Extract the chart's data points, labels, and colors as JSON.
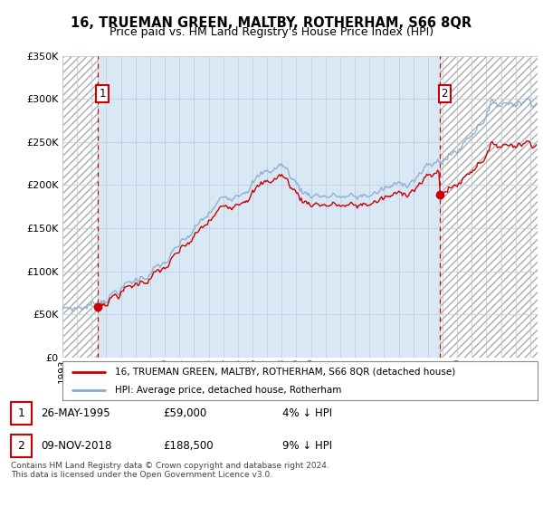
{
  "title": "16, TRUEMAN GREEN, MALTBY, ROTHERHAM, S66 8QR",
  "subtitle": "Price paid vs. HM Land Registry's House Price Index (HPI)",
  "legend_line1": "16, TRUEMAN GREEN, MALTBY, ROTHERHAM, S66 8QR (detached house)",
  "legend_line2": "HPI: Average price, detached house, Rotherham",
  "footer": "Contains HM Land Registry data © Crown copyright and database right 2024.\nThis data is licensed under the Open Government Licence v3.0.",
  "purchase1_date": "26-MAY-1995",
  "purchase1_price": 59000,
  "purchase1_label": "1",
  "purchase1_pct": "4% ↓ HPI",
  "purchase2_date": "09-NOV-2018",
  "purchase2_price": 188500,
  "purchase2_label": "2",
  "purchase2_pct": "9% ↓ HPI",
  "ylim": [
    0,
    350000
  ],
  "xlim_start": 1993.0,
  "xlim_end": 2025.5,
  "purchase1_x": 1995.42,
  "purchase2_x": 2018.84,
  "color_property": "#cc0000",
  "color_hpi": "#88aacc",
  "color_hatch": "#cccccc",
  "color_grid": "#c0d0e0",
  "background_plot": "#d8e8f4"
}
